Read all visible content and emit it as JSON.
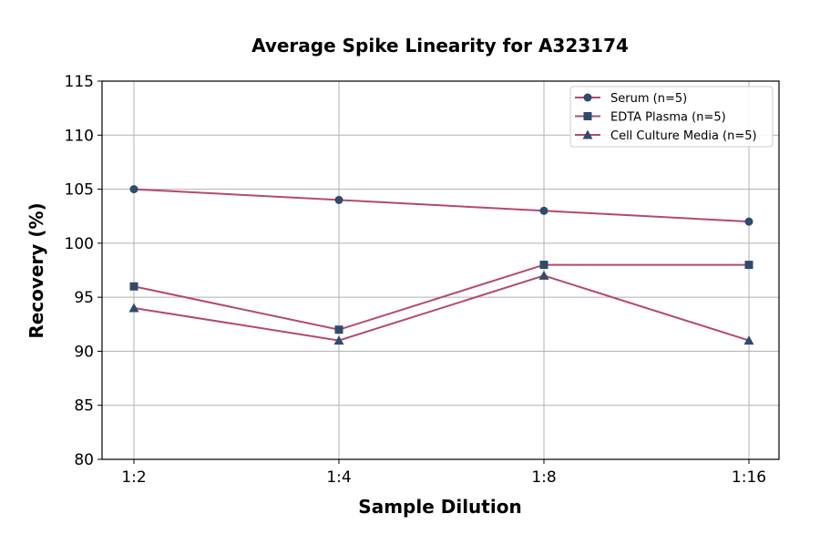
{
  "chart_data": {
    "type": "line",
    "title": "Average Spike Linearity for A323174",
    "xlabel": "Sample Dilution",
    "ylabel": "Recovery (%)",
    "categories": [
      "1:2",
      "1:4",
      "1:8",
      "1:16"
    ],
    "ylim": [
      80,
      115
    ],
    "yticks": [
      80,
      85,
      90,
      95,
      100,
      105,
      110,
      115
    ],
    "grid": true,
    "legend_position": "top-right",
    "colors": {
      "line": "#b5486f",
      "marker": "#2f4b6e"
    },
    "series": [
      {
        "name": "Serum (n=5)",
        "marker": "circle",
        "values": [
          105,
          104,
          103,
          102
        ]
      },
      {
        "name": "EDTA Plasma (n=5)",
        "marker": "square",
        "values": [
          96,
          92,
          98,
          98
        ]
      },
      {
        "name": "Cell Culture Media (n=5)",
        "marker": "triangle",
        "values": [
          94,
          91,
          97,
          91
        ]
      }
    ]
  }
}
